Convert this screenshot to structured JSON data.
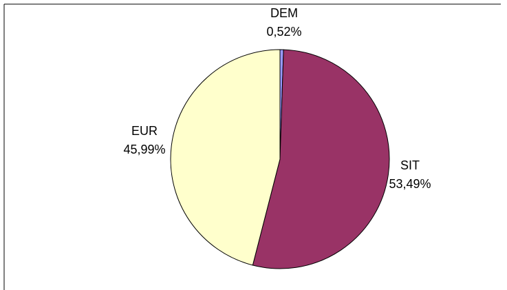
{
  "chart_data": {
    "type": "pie",
    "title": "",
    "slices": [
      {
        "label": "DEM",
        "value": 0.52,
        "value_label": "0,52%",
        "color": "#9999ff"
      },
      {
        "label": "SIT",
        "value": 53.49,
        "value_label": "53,49%",
        "color": "#993366"
      },
      {
        "label": "EUR",
        "value": 45.99,
        "value_label": "45,99%",
        "color": "#ffffcc"
      }
    ],
    "start_angle_deg": 0,
    "direction": "clockwise",
    "legend": "none"
  }
}
